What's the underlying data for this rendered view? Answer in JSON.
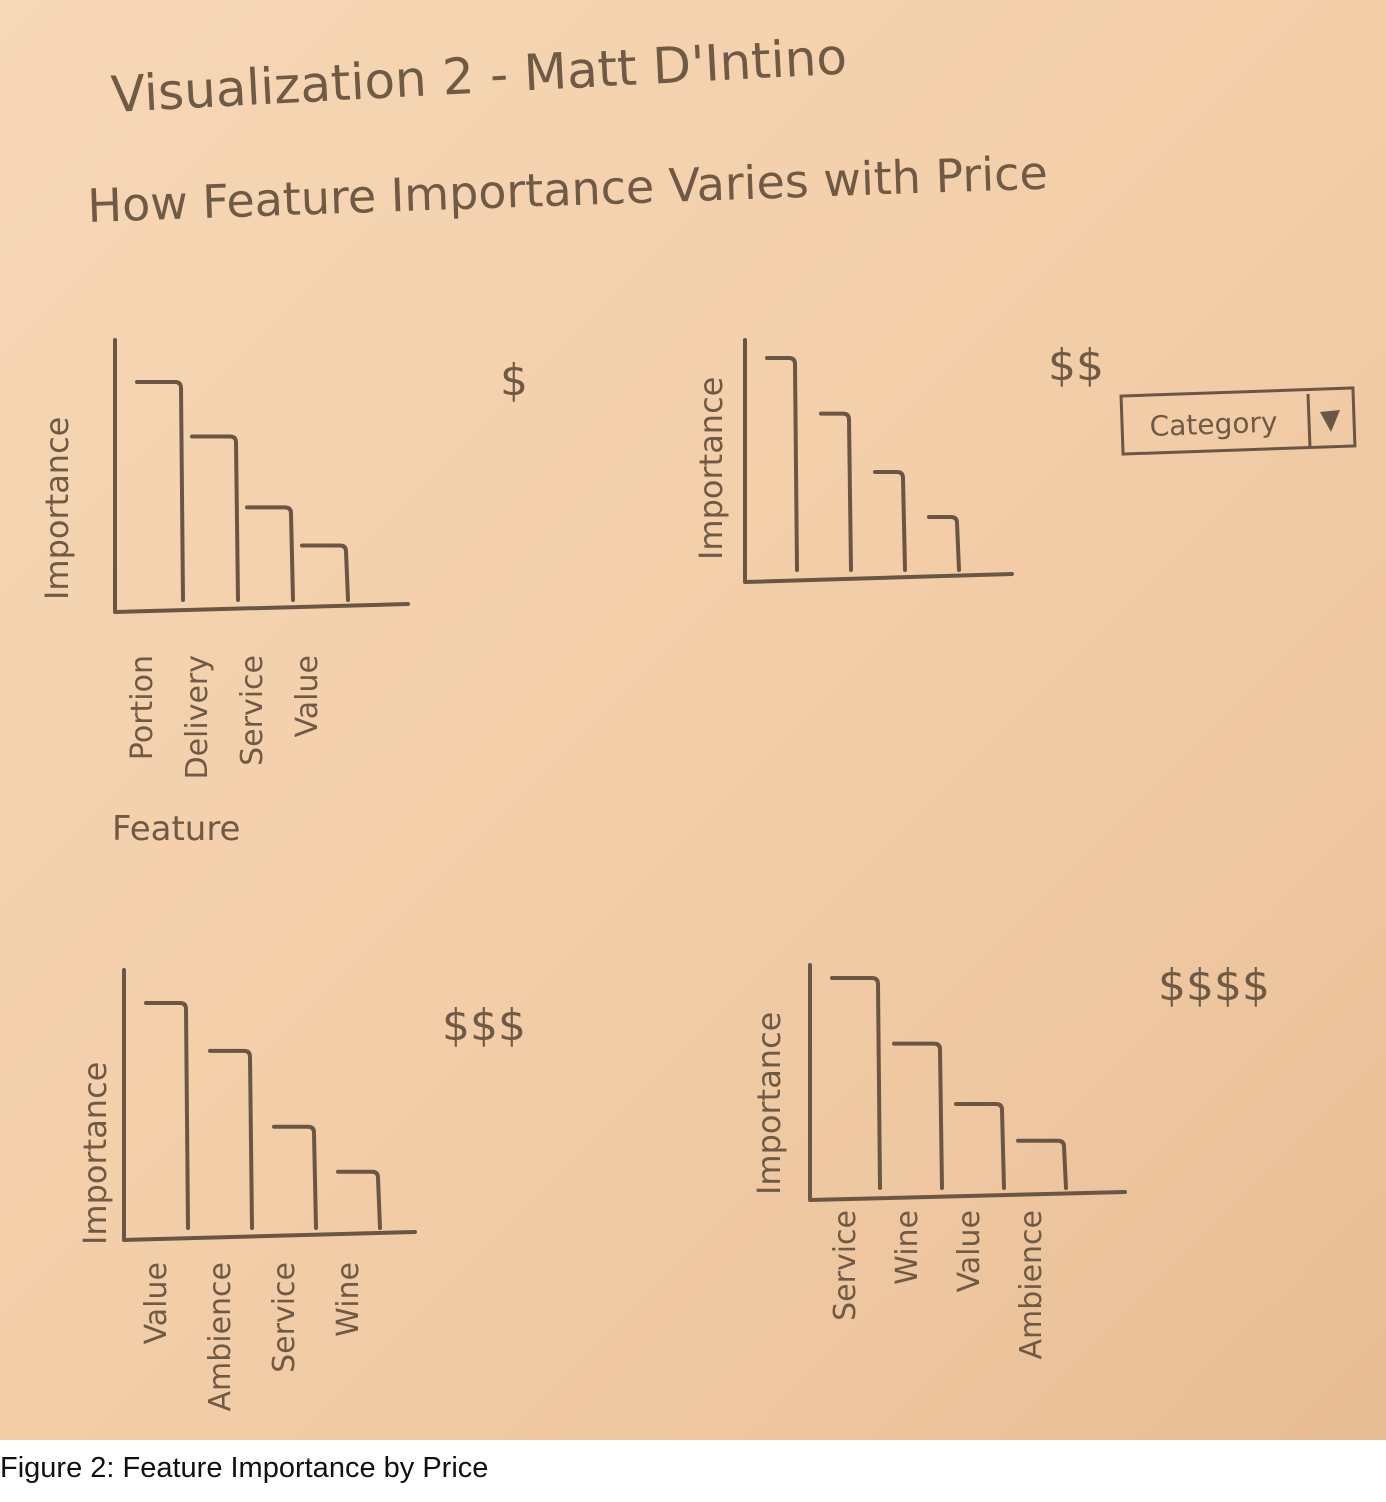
{
  "sketch": {
    "title": "Visualization 2 - Matt D'Intino",
    "subtitle": "How Feature Importance Varies with Price",
    "dropdown": {
      "label": "Category"
    }
  },
  "caption": "Figure 2: Feature Importance by Price",
  "colors": {
    "pencil": "#6a5644",
    "paper": "#f3cfaa"
  },
  "chart_data": [
    {
      "type": "bar",
      "price_label": "$",
      "ylabel": "Importance",
      "xlabel": "Feature",
      "categories": [
        "Portion",
        "Delivery",
        "Service",
        "Value"
      ],
      "values": [
        4,
        3,
        1.7,
        1
      ]
    },
    {
      "type": "bar",
      "price_label": "$$",
      "ylabel": "Importance",
      "xlabel": "",
      "categories": [
        "",
        "",
        "",
        ""
      ],
      "values": [
        4,
        2.95,
        1.85,
        1
      ]
    },
    {
      "type": "bar",
      "price_label": "$$$",
      "ylabel": "Importance",
      "xlabel": "",
      "categories": [
        "Value",
        "Ambience",
        "Service",
        "Wine"
      ],
      "values": [
        4,
        3.15,
        1.8,
        1
      ]
    },
    {
      "type": "bar",
      "price_label": "$$$$",
      "ylabel": "Importance",
      "xlabel": "",
      "categories": [
        "Service",
        "Wine",
        "Value",
        "Ambience"
      ],
      "values": [
        4,
        2.75,
        1.6,
        0.9
      ]
    }
  ]
}
